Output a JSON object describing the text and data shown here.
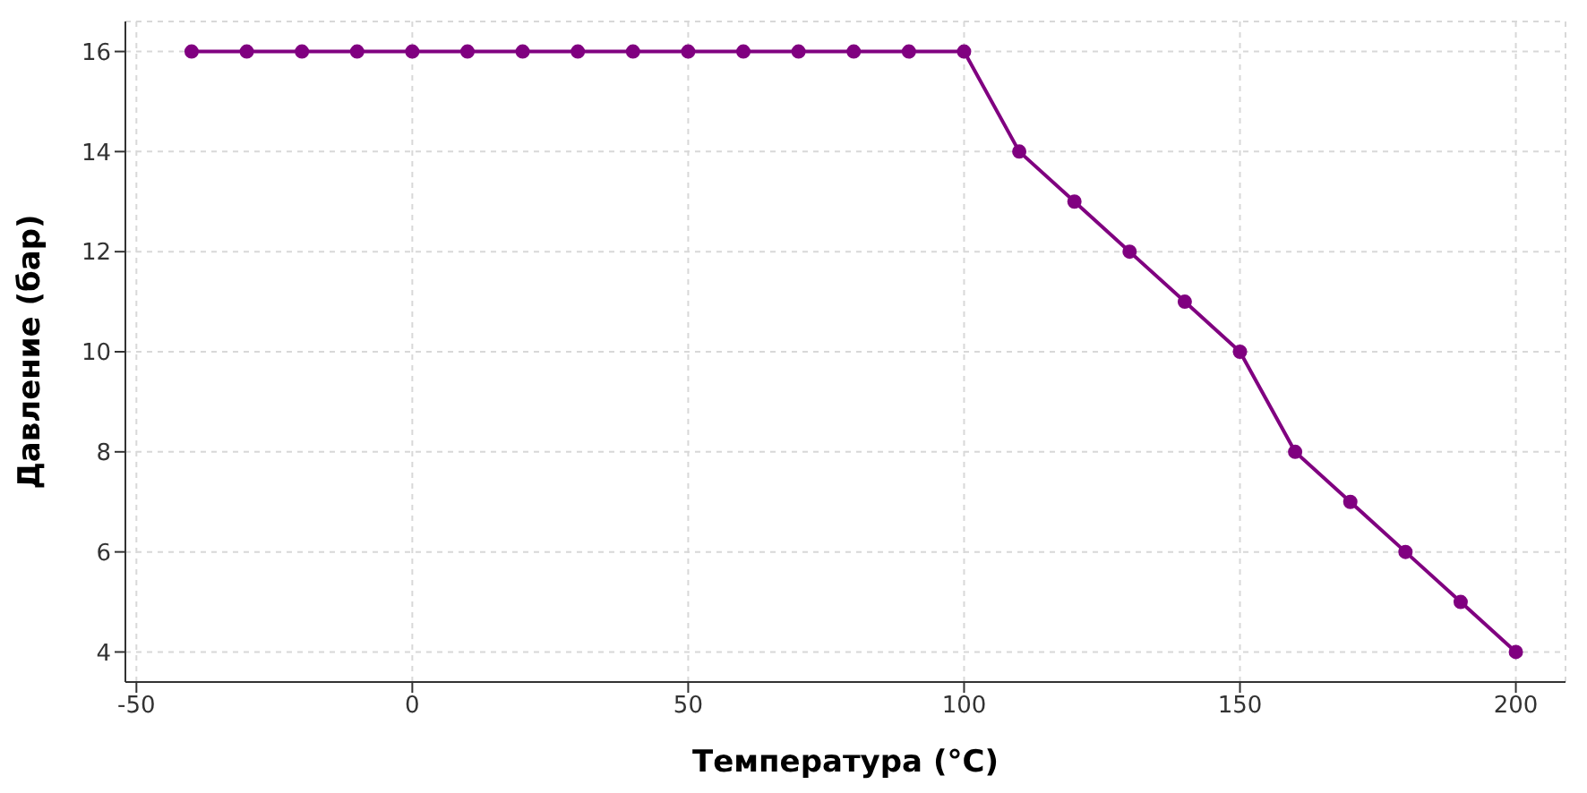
{
  "chart_data": {
    "type": "line",
    "xlabel": "Температура (°C)",
    "ylabel": "Давление (бар)",
    "x": [
      -40,
      -30,
      -20,
      -10,
      0,
      10,
      20,
      30,
      40,
      50,
      60,
      70,
      80,
      90,
      100,
      110,
      120,
      130,
      140,
      150,
      160,
      170,
      180,
      190,
      200
    ],
    "series": [
      {
        "color": "#800080",
        "values": [
          16,
          16,
          16,
          16,
          16,
          16,
          16,
          16,
          16,
          16,
          16,
          16,
          16,
          16,
          16,
          14,
          13,
          12,
          11,
          10,
          8,
          7,
          6,
          5,
          4
        ]
      }
    ],
    "xlim": [
      -52,
      209
    ],
    "xticks": [
      -50,
      0,
      50,
      100,
      150,
      200
    ],
    "ylim": [
      3.4,
      16.6
    ],
    "yticks": [
      4,
      6,
      8,
      10,
      12,
      14,
      16
    ],
    "grid": true,
    "marker": "circle",
    "line_style": "solid",
    "legend": false
  }
}
